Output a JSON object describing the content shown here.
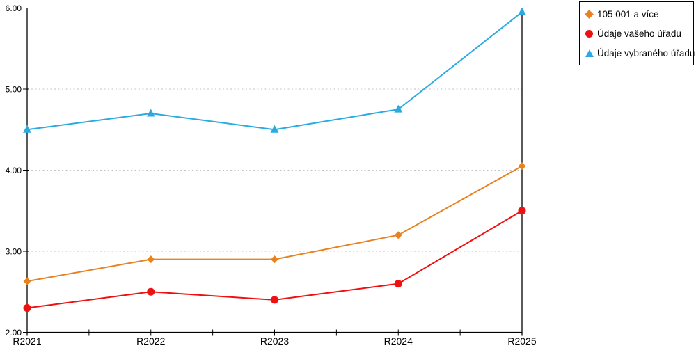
{
  "chart_data": {
    "type": "line",
    "title": "",
    "xlabel": "",
    "ylabel": "",
    "categories": [
      "R2021",
      "R2022",
      "R2023",
      "R2024",
      "R2025"
    ],
    "series": [
      {
        "name": "105 001 a více",
        "color": "#E8821E",
        "marker": "diamond",
        "values": [
          2.63,
          2.9,
          2.9,
          3.2,
          4.05
        ]
      },
      {
        "name": "Údaje vašeho úřadu",
        "color": "#EE1111",
        "marker": "circle",
        "values": [
          2.3,
          2.5,
          2.4,
          2.6,
          3.5
        ]
      },
      {
        "name": "Údaje vybraného úřadu",
        "color": "#29ABE2",
        "marker": "triangle-up",
        "values": [
          4.5,
          4.7,
          4.5,
          4.75,
          5.95
        ]
      }
    ],
    "ylim": [
      2,
      6
    ],
    "yticks": [
      2,
      3,
      4,
      5,
      6
    ],
    "ytick_labels": [
      "2.00",
      "3.00",
      "4.00",
      "5.00",
      "6.00"
    ],
    "grid": "horizontal-dotted",
    "grid_color": "#c2c2c2",
    "axis_color": "#000000",
    "legend_position": "top-right-outside"
  }
}
